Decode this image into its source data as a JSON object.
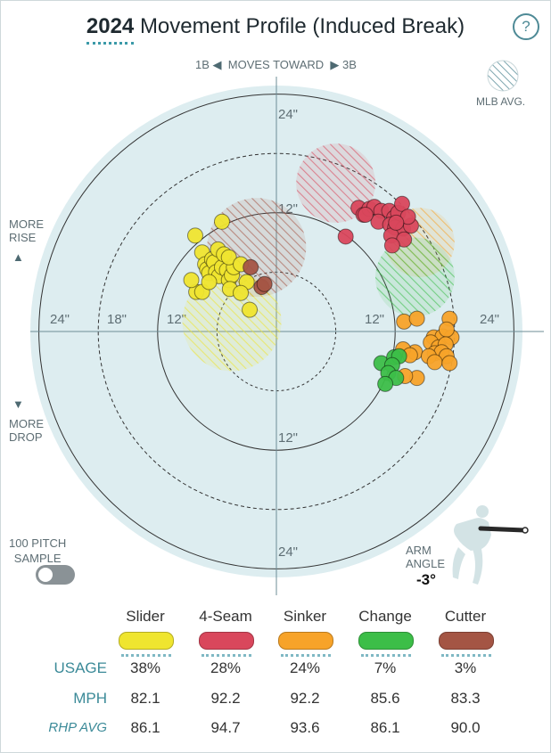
{
  "header": {
    "year": "2024",
    "title": "Movement Profile (Induced Break)",
    "help_glyph": "?"
  },
  "labels": {
    "direction_left": "1B",
    "direction_mid": "MOVES TOWARD",
    "direction_right": "3B",
    "mlb_avg": "MLB AVG.",
    "more_rise": [
      "MORE",
      "RISE"
    ],
    "more_drop": [
      "MORE",
      "DROP"
    ],
    "sample": [
      "100 PITCH",
      "SAMPLE"
    ],
    "arm_angle_label": [
      "ARM",
      "ANGLE"
    ],
    "arm_angle_value": "-3°"
  },
  "colors": {
    "Slider": "#efe52f",
    "4-Seam": "#d9475c",
    "Sinker": "#f7a329",
    "Change": "#3cbe48",
    "Cutter": "#a45544",
    "plot_bg": "#ddedf0",
    "accent": "#3b8a98"
  },
  "chart_data": {
    "type": "scatter",
    "title": "Movement Profile (Induced Break)",
    "x_unit": "inches (horizontal break)",
    "y_unit": "inches (induced vertical break)",
    "xlim": [
      -30,
      30
    ],
    "ylim": [
      -30,
      30
    ],
    "ring_labels": [
      "12\"",
      "24\"",
      "18\"",
      "12\"",
      "24\"",
      "24\"",
      "12\"",
      "12\"",
      "24\""
    ],
    "rings_in": [
      6,
      12,
      18,
      24
    ],
    "mlb_avg_regions": [
      {
        "pitch": "4-Seam",
        "x": 6.0,
        "y": 15.0,
        "r": 4.0
      },
      {
        "pitch": "Cutter",
        "x": -2.0,
        "y": 8.5,
        "r": 5.0
      },
      {
        "pitch": "Slider",
        "x": -4.5,
        "y": 1.0,
        "r": 5.0
      },
      {
        "pitch": "Sinker",
        "x": 14.5,
        "y": 9.0,
        "r": 3.5
      },
      {
        "pitch": "Change",
        "x": 14.0,
        "y": 5.5,
        "r": 4.0
      }
    ],
    "series": [
      {
        "name": "Slider",
        "points": [
          [
            -8.2,
            9.7
          ],
          [
            -5.5,
            11.1
          ],
          [
            -7.5,
            8.0
          ],
          [
            -7.2,
            6.8
          ],
          [
            -7.0,
            6.3
          ],
          [
            -6.8,
            5.9
          ],
          [
            -6.5,
            7.3
          ],
          [
            -6.3,
            7.0
          ],
          [
            -6.1,
            6.0
          ],
          [
            -5.9,
            8.3
          ],
          [
            -5.8,
            5.6
          ],
          [
            -5.5,
            6.5
          ],
          [
            -5.3,
            7.8
          ],
          [
            -5.0,
            6.2
          ],
          [
            -4.8,
            5.2
          ],
          [
            -4.5,
            5.7
          ],
          [
            -4.3,
            6.5
          ],
          [
            -4.8,
            7.5
          ],
          [
            -3.6,
            6.8
          ],
          [
            -3.0,
            5.0
          ],
          [
            -2.7,
            2.2
          ],
          [
            -4.7,
            4.3
          ],
          [
            -3.6,
            3.9
          ],
          [
            -8.1,
            4.0
          ],
          [
            -7.5,
            4.0
          ],
          [
            -8.6,
            5.2
          ],
          [
            -6.8,
            5.0
          ]
        ]
      },
      {
        "name": "4-Seam",
        "points": [
          [
            8.3,
            12.5
          ],
          [
            8.8,
            11.8
          ],
          [
            9.4,
            12.4
          ],
          [
            9.9,
            12.6
          ],
          [
            10.6,
            12.2
          ],
          [
            11.4,
            12.2
          ],
          [
            11.9,
            11.5
          ],
          [
            12.3,
            12.0
          ],
          [
            12.7,
            12.9
          ],
          [
            10.3,
            11.1
          ],
          [
            11.5,
            10.8
          ],
          [
            12.0,
            10.5
          ],
          [
            12.8,
            10.4
          ],
          [
            13.6,
            10.7
          ],
          [
            11.6,
            9.7
          ],
          [
            12.9,
            9.3
          ],
          [
            11.7,
            8.7
          ],
          [
            13.3,
            11.6
          ],
          [
            12.1,
            11.0
          ],
          [
            9.0,
            11.8
          ],
          [
            7.0,
            9.6
          ]
        ]
      },
      {
        "name": "Sinker",
        "points": [
          [
            12.9,
            1.0
          ],
          [
            14.2,
            1.3
          ],
          [
            17.5,
            1.3
          ],
          [
            15.9,
            -0.6
          ],
          [
            16.8,
            -0.5
          ],
          [
            17.7,
            -0.6
          ],
          [
            17.2,
            0.2
          ],
          [
            15.6,
            -1.1
          ],
          [
            16.4,
            -1.6
          ],
          [
            17.1,
            -1.3
          ],
          [
            16.0,
            -2.2
          ],
          [
            16.7,
            -2.1
          ],
          [
            14.0,
            -2.1
          ],
          [
            15.4,
            -2.5
          ],
          [
            17.2,
            -2.5
          ],
          [
            12.8,
            -1.8
          ],
          [
            13.5,
            -2.4
          ],
          [
            16.0,
            -3.1
          ],
          [
            17.5,
            -3.2
          ],
          [
            14.2,
            -4.7
          ],
          [
            13.0,
            -4.5
          ]
        ]
      },
      {
        "name": "Change",
        "points": [
          [
            10.6,
            -3.2
          ],
          [
            11.9,
            -2.6
          ],
          [
            12.4,
            -2.5
          ],
          [
            11.7,
            -3.4
          ],
          [
            11.3,
            -4.2
          ],
          [
            12.1,
            -4.7
          ],
          [
            11.0,
            -5.3
          ]
        ]
      },
      {
        "name": "Cutter",
        "points": [
          [
            -2.6,
            6.5
          ],
          [
            -1.5,
            4.5
          ],
          [
            -1.2,
            4.8
          ]
        ]
      }
    ]
  },
  "legend": {
    "pitches": [
      "Slider",
      "4-Seam",
      "Sinker",
      "Change",
      "Cutter"
    ],
    "rows": [
      {
        "label": "USAGE",
        "values": [
          "38%",
          "28%",
          "24%",
          "7%",
          "3%"
        ]
      },
      {
        "label": "MPH",
        "values": [
          "82.1",
          "92.2",
          "92.2",
          "85.6",
          "83.3"
        ]
      },
      {
        "label": "RHP AVG",
        "values": [
          "86.1",
          "94.7",
          "93.6",
          "86.1",
          "90.0"
        ]
      }
    ]
  }
}
